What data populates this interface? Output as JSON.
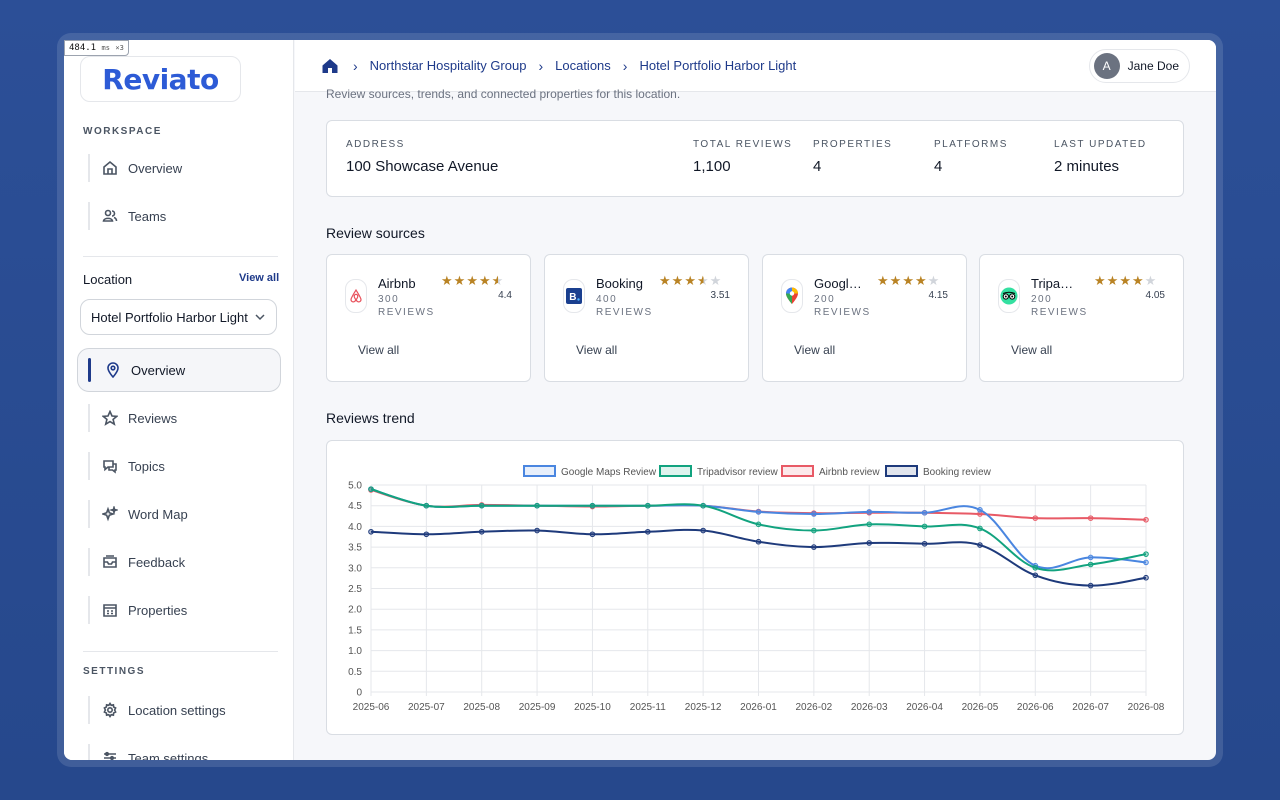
{
  "perf": {
    "value": "484.1",
    "unit": "ms",
    "multiplier": "×3"
  },
  "brand": {
    "name": "Reviato"
  },
  "sidebar": {
    "workspace_label": "WORKSPACE",
    "workspace_items": [
      {
        "label": "Overview",
        "icon": "home-icon"
      },
      {
        "label": "Teams",
        "icon": "users-icon"
      }
    ],
    "location_label": "Location",
    "location_view_all": "View all",
    "location_selected": "Hotel Portfolio Harbor Light",
    "location_items": [
      {
        "label": "Overview",
        "icon": "pin-icon",
        "active": true
      },
      {
        "label": "Reviews",
        "icon": "star-icon"
      },
      {
        "label": "Topics",
        "icon": "chat-icon"
      },
      {
        "label": "Word Map",
        "icon": "sparkles-icon"
      },
      {
        "label": "Feedback",
        "icon": "inbox-icon"
      },
      {
        "label": "Properties",
        "icon": "building-icon"
      }
    ],
    "settings_label": "SETTINGS",
    "settings_items": [
      {
        "label": "Location settings",
        "icon": "gear-icon"
      },
      {
        "label": "Team settings",
        "icon": "sliders-icon"
      }
    ]
  },
  "breadcrumb": [
    "Northstar Hospitality Group",
    "Locations",
    "Hotel Portfolio Harbor Light"
  ],
  "user": {
    "initial": "A",
    "name": "Jane Doe"
  },
  "page": {
    "subtitle": "Review sources, trends, and connected properties for this location."
  },
  "summary": {
    "address_label": "ADDRESS",
    "address": "100 Showcase Avenue",
    "total_label": "TOTAL REVIEWS",
    "total": "1,100",
    "properties_label": "PROPERTIES",
    "properties": "4",
    "platforms_label": "PLATFORMS",
    "platforms": "4",
    "updated_label": "LAST UPDATED",
    "updated": "2 minutes"
  },
  "sources_title": "Review sources",
  "sources": [
    {
      "name": "Airbnb",
      "count": "300",
      "unit": "REVIEWS",
      "rating": "4.4",
      "stars": 4.4,
      "view_all": "View all",
      "icon": "airbnb-icon"
    },
    {
      "name": "Booking",
      "count": "400",
      "unit": "REVIEWS",
      "rating": "3.51",
      "stars": 3.51,
      "view_all": "View all",
      "icon": "booking-icon"
    },
    {
      "name": "Google...",
      "count": "200",
      "unit": "REVIEWS",
      "rating": "4.15",
      "stars": 4.15,
      "view_all": "View all",
      "icon": "google-maps-icon"
    },
    {
      "name": "Tripadv...",
      "count": "200",
      "unit": "REVIEWS",
      "rating": "4.05",
      "stars": 4.05,
      "view_all": "View all",
      "icon": "tripadvisor-icon"
    }
  ],
  "trend_title": "Reviews trend",
  "colors": {
    "google": "#4a86e0",
    "tripadvisor": "#12a37f",
    "airbnb": "#e85a66",
    "booking": "#1e3a7b",
    "star": "#b98324"
  },
  "chart_data": {
    "type": "line",
    "categories": [
      "2025-06",
      "2025-07",
      "2025-08",
      "2025-09",
      "2025-10",
      "2025-11",
      "2025-12",
      "2026-01",
      "2026-02",
      "2026-03",
      "2026-04",
      "2026-05",
      "2026-06",
      "2026-07",
      "2026-08"
    ],
    "ylim": [
      0,
      5
    ],
    "yticks": [
      "0",
      "0.5",
      "1.0",
      "1.5",
      "2.0",
      "2.5",
      "3.0",
      "3.5",
      "4.0",
      "4.5",
      "5.0"
    ],
    "grid": true,
    "legend_position": "top",
    "series": [
      {
        "name": "Google Maps Review",
        "color": "#4a86e0",
        "values": [
          4.9,
          4.5,
          4.5,
          4.5,
          4.5,
          4.5,
          4.5,
          4.35,
          4.3,
          4.35,
          4.33,
          4.4,
          3.05,
          3.25,
          3.13
        ]
      },
      {
        "name": "Tripadvisor review",
        "color": "#12a37f",
        "values": [
          4.9,
          4.5,
          4.5,
          4.5,
          4.5,
          4.5,
          4.5,
          4.05,
          3.9,
          4.05,
          4.0,
          3.95,
          3.0,
          3.08,
          3.33
        ]
      },
      {
        "name": "Airbnb review",
        "color": "#e85a66",
        "values": [
          4.88,
          4.5,
          4.52,
          4.5,
          4.48,
          4.5,
          4.5,
          4.36,
          4.32,
          4.33,
          4.33,
          4.3,
          4.2,
          4.2,
          4.16
        ]
      },
      {
        "name": "Booking review",
        "color": "#1e3a7b",
        "values": [
          3.87,
          3.81,
          3.87,
          3.9,
          3.81,
          3.87,
          3.9,
          3.63,
          3.5,
          3.6,
          3.58,
          3.55,
          2.82,
          2.57,
          2.76
        ]
      }
    ]
  }
}
